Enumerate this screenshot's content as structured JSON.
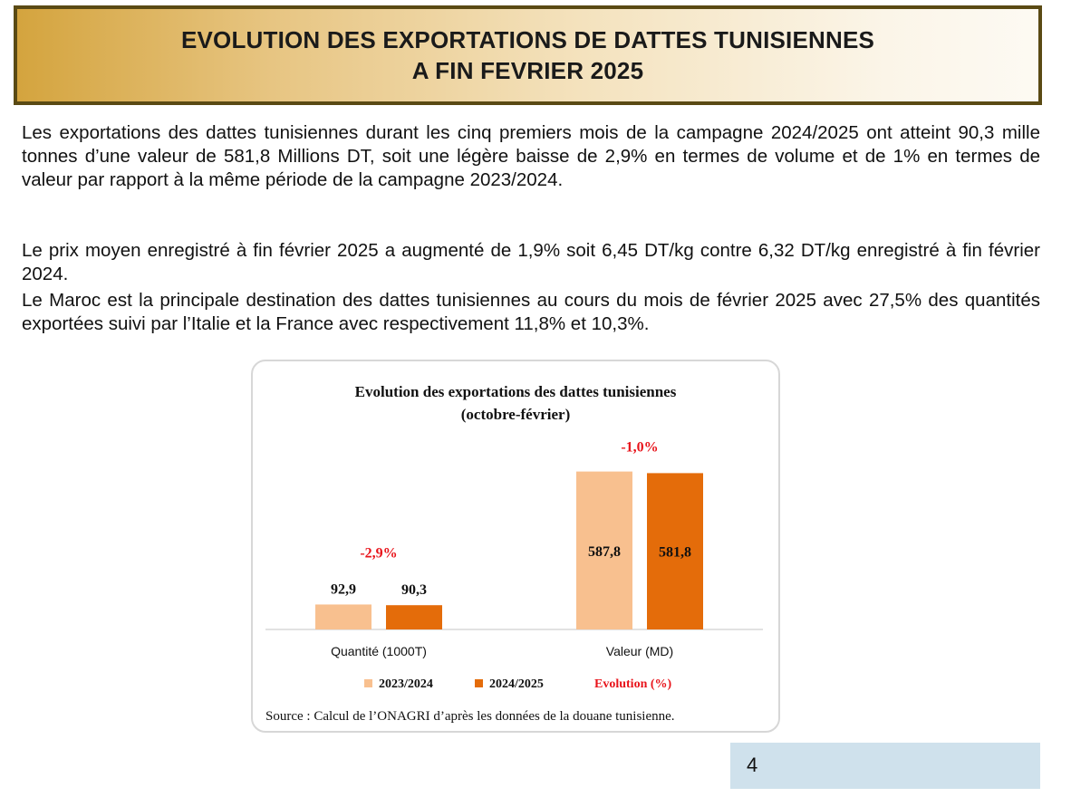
{
  "header": {
    "title_line1": "EVOLUTION DES EXPORTATIONS DE DATTES TUNISIENNES",
    "title_line2": "A FIN FEVRIER 2025"
  },
  "paragraphs": [
    "Les exportations des dattes tunisiennes durant les cinq premiers mois de la campagne 2024/2025 ont atteint 90,3 mille tonnes d’une valeur de 581,8 Millions DT, soit une légère baisse de 2,9% en termes de volume et de 1% en termes de valeur par rapport à la même période de la campagne 2023/2024.",
    "Le prix moyen enregistré à fin février 2025 a augmenté de 1,9% soit 6,45 DT/kg contre 6,32 DT/kg enregistré à fin février 2024.",
    "Le Maroc est la principale destination des dattes tunisiennes au cours du mois de février 2025 avec 27,5% des quantités exportées suivi par l’Italie et la France avec respectivement 11,8% et 10,3%."
  ],
  "chart_data": {
    "type": "bar",
    "title": "Evolution des exportations des dattes tunisiennes",
    "subtitle": "(octobre-février)",
    "categories": [
      "Quantité (1000T)",
      "Valeur (MD)"
    ],
    "series": [
      {
        "name": "2023/2024",
        "values": [
          92.9,
          587.8
        ],
        "labels": [
          "92,9",
          "587,8"
        ],
        "color": "#f8c08f"
      },
      {
        "name": "2024/2025",
        "values": [
          90.3,
          581.8
        ],
        "labels": [
          "90,3",
          "581,8"
        ],
        "color": "#e46c0a"
      }
    ],
    "evolution": {
      "name": "Evolution (%)",
      "values": [
        -2.9,
        -1.0
      ],
      "labels": [
        "-2,9%",
        "-1,0%"
      ],
      "color": "#e8141b"
    },
    "ylim": [
      0,
      600
    ],
    "grid": false,
    "legend_position": "bottom"
  },
  "source_note": "Source : Calcul de l’ONAGRI d’après les données de la douane tunisienne.",
  "page_number": "4"
}
